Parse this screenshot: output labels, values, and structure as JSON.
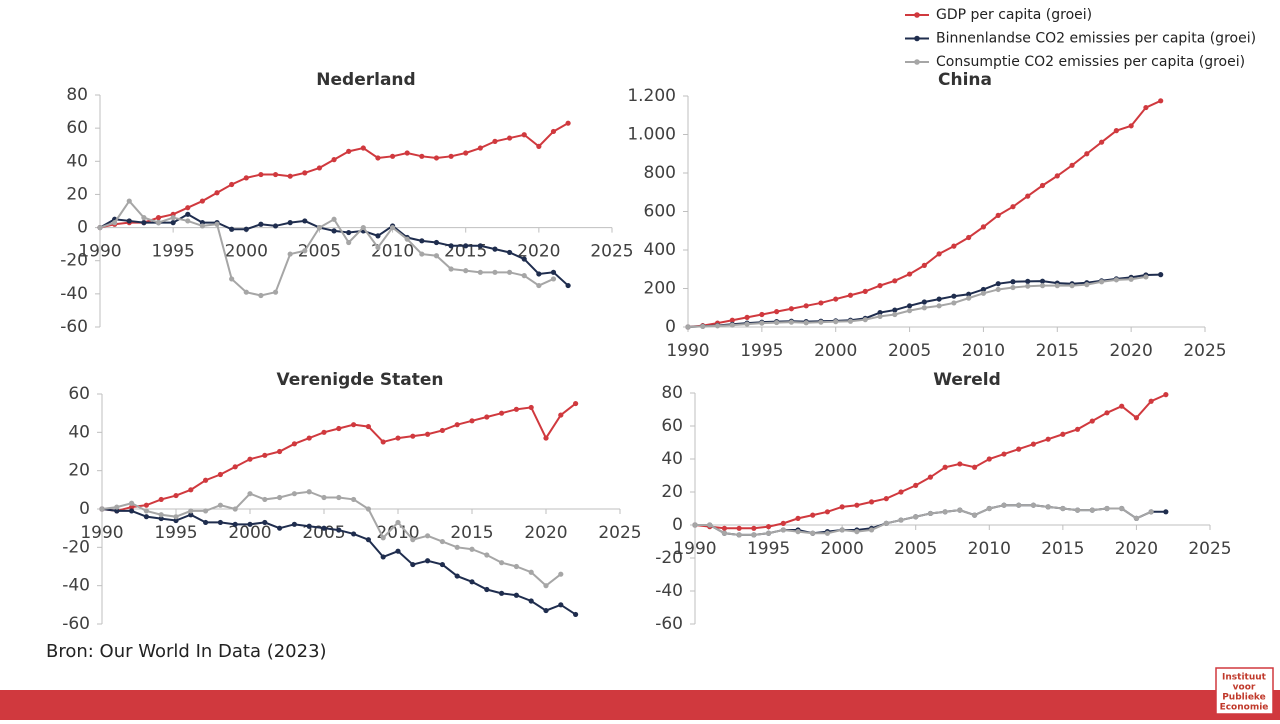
{
  "source": "Bron: Our World In Data (2023)",
  "logo": [
    "Instituut",
    "voor",
    "Publieke",
    "Economie"
  ],
  "chart_data": [
    {
      "type": "line",
      "title": "Nederland",
      "x": [
        1990,
        1991,
        1992,
        1993,
        1994,
        1995,
        1996,
        1997,
        1998,
        1999,
        2000,
        2001,
        2002,
        2003,
        2004,
        2005,
        2006,
        2007,
        2008,
        2009,
        2010,
        2011,
        2012,
        2013,
        2014,
        2015,
        2016,
        2017,
        2018,
        2019,
        2020,
        2021,
        2022
      ],
      "xlim": [
        1990,
        2025
      ],
      "xticks": [
        1990,
        1995,
        2000,
        2005,
        2010,
        2015,
        2020,
        2025
      ],
      "ylim": [
        -60,
        80
      ],
      "yticks": [
        -60,
        -40,
        -20,
        0,
        20,
        40,
        60,
        80
      ],
      "series": [
        {
          "name": "GDP per capita (groei)",
          "color": "#d0393e",
          "values": [
            0,
            2,
            3,
            3,
            6,
            8,
            12,
            16,
            21,
            26,
            30,
            32,
            32,
            31,
            33,
            36,
            41,
            46,
            48,
            42,
            43,
            45,
            43,
            42,
            43,
            45,
            48,
            52,
            54,
            56,
            49,
            58,
            63
          ]
        },
        {
          "name": "Binnenlandse CO2 emissies per capita (groei)",
          "color": "#1f2d4e",
          "values": [
            0,
            5,
            4,
            3,
            3,
            3,
            8,
            3,
            3,
            -1,
            -1,
            2,
            1,
            3,
            4,
            0,
            -2,
            -3,
            -2,
            -5,
            1,
            -6,
            -8,
            -9,
            -11,
            -11,
            -11,
            -13,
            -15,
            -19,
            -28,
            -27,
            -35
          ]
        },
        {
          "name": "Consumptie CO2 emissies per capita (groei)",
          "color": "#a6a6a6",
          "values": [
            0,
            3,
            16,
            6,
            3,
            6,
            4,
            1,
            2,
            -31,
            -39,
            -41,
            -39,
            -16,
            -14,
            0,
            5,
            -9,
            0,
            -12,
            0,
            -7,
            -16,
            -17,
            -25,
            -26,
            -27,
            -27,
            -27,
            -29,
            -35,
            -31,
            null
          ]
        }
      ]
    },
    {
      "type": "line",
      "title": "China",
      "x": [
        1990,
        1991,
        1992,
        1993,
        1994,
        1995,
        1996,
        1997,
        1998,
        1999,
        2000,
        2001,
        2002,
        2003,
        2004,
        2005,
        2006,
        2007,
        2008,
        2009,
        2010,
        2011,
        2012,
        2013,
        2014,
        2015,
        2016,
        2017,
        2018,
        2019,
        2020,
        2021,
        2022
      ],
      "xlim": [
        1990,
        2025
      ],
      "xticks": [
        1990,
        1995,
        2000,
        2005,
        2010,
        2015,
        2020,
        2025
      ],
      "ylim": [
        0,
        1200
      ],
      "yticks": [
        0,
        200,
        400,
        600,
        800,
        {
          "value": 1000,
          "label": "1.000"
        },
        {
          "value": 1200,
          "label": "1.200"
        }
      ],
      "series": [
        {
          "values": [
            0,
            7,
            20,
            35,
            50,
            65,
            80,
            95,
            110,
            125,
            145,
            165,
            185,
            215,
            240,
            275,
            320,
            380,
            420,
            465,
            520,
            580,
            625,
            680,
            735,
            785,
            840,
            900,
            960,
            1020,
            1045,
            1140,
            1175
          ]
        },
        {
          "values": [
            0,
            4,
            8,
            14,
            20,
            25,
            28,
            30,
            28,
            30,
            32,
            35,
            45,
            75,
            88,
            110,
            130,
            145,
            160,
            170,
            195,
            225,
            235,
            237,
            238,
            228,
            225,
            230,
            240,
            250,
            258,
            270,
            272
          ]
        },
        {
          "values": [
            0,
            3,
            6,
            10,
            15,
            20,
            23,
            25,
            22,
            25,
            28,
            30,
            38,
            55,
            65,
            85,
            100,
            110,
            125,
            150,
            175,
            195,
            205,
            212,
            215,
            215,
            215,
            220,
            235,
            245,
            248,
            260,
            null
          ]
        }
      ]
    },
    {
      "type": "line",
      "title": "Verenigde Staten",
      "x": [
        1990,
        1991,
        1992,
        1993,
        1994,
        1995,
        1996,
        1997,
        1998,
        1999,
        2000,
        2001,
        2002,
        2003,
        2004,
        2005,
        2006,
        2007,
        2008,
        2009,
        2010,
        2011,
        2012,
        2013,
        2014,
        2015,
        2016,
        2017,
        2018,
        2019,
        2020,
        2021,
        2022
      ],
      "xlim": [
        1990,
        2025
      ],
      "xticks": [
        1990,
        1995,
        2000,
        2005,
        2010,
        2015,
        2020,
        2025
      ],
      "ylim": [
        -60,
        60
      ],
      "yticks": [
        -60,
        -40,
        -20,
        0,
        20,
        40,
        60
      ],
      "series": [
        {
          "values": [
            0,
            -1,
            1,
            2,
            5,
            7,
            10,
            15,
            18,
            22,
            26,
            28,
            30,
            34,
            37,
            40,
            42,
            44,
            43,
            35,
            37,
            38,
            39,
            41,
            44,
            46,
            48,
            50,
            52,
            53,
            37,
            49,
            55
          ]
        },
        {
          "values": [
            0,
            -1,
            -1,
            -4,
            -5,
            -6,
            -3,
            -7,
            -7,
            -8,
            -8,
            -7,
            -10,
            -8,
            -9,
            -10,
            -11,
            -13,
            -16,
            -25,
            -22,
            -29,
            -27,
            -29,
            -35,
            -38,
            -42,
            -44,
            -45,
            -48,
            -53,
            -50,
            -55
          ]
        },
        {
          "values": [
            0,
            1,
            3,
            -1,
            -3,
            -4,
            -1,
            -1,
            2,
            0,
            8,
            5,
            6,
            8,
            9,
            6,
            6,
            5,
            0,
            -15,
            -7,
            -16,
            -14,
            -17,
            -20,
            -21,
            -24,
            -28,
            -30,
            -33,
            -40,
            -34,
            null
          ]
        }
      ]
    },
    {
      "type": "line",
      "title": "Wereld",
      "x": [
        1990,
        1991,
        1992,
        1993,
        1994,
        1995,
        1996,
        1997,
        1998,
        1999,
        2000,
        2001,
        2002,
        2003,
        2004,
        2005,
        2006,
        2007,
        2008,
        2009,
        2010,
        2011,
        2012,
        2013,
        2014,
        2015,
        2016,
        2017,
        2018,
        2019,
        2020,
        2021,
        2022
      ],
      "xlim": [
        1990,
        2025
      ],
      "xticks": [
        1990,
        1995,
        2000,
        2005,
        2010,
        2015,
        2020,
        2025
      ],
      "ylim": [
        -60,
        80
      ],
      "yticks": [
        -60,
        -40,
        -20,
        0,
        20,
        40,
        60,
        80
      ],
      "series": [
        {
          "values": [
            0,
            -1,
            -2,
            -2,
            -2,
            -1,
            1,
            4,
            6,
            8,
            11,
            12,
            14,
            16,
            20,
            24,
            29,
            35,
            37,
            35,
            40,
            43,
            46,
            49,
            52,
            55,
            58,
            63,
            68,
            72,
            65,
            75,
            79
          ]
        },
        {
          "values": [
            0,
            0,
            -5,
            -6,
            -6,
            -5,
            -3,
            -3,
            -5,
            -4,
            -3,
            -3,
            -2,
            1,
            3,
            5,
            7,
            8,
            9,
            6,
            10,
            12,
            12,
            12,
            11,
            10,
            9,
            9,
            10,
            10,
            4,
            8,
            8
          ]
        },
        {
          "values": [
            0,
            0,
            -5,
            -6,
            -6,
            -5,
            -3,
            -4,
            -5,
            -5,
            -3,
            -4,
            -3,
            1,
            3,
            5,
            7,
            8,
            9,
            6,
            10,
            12,
            12,
            12,
            11,
            10,
            9,
            9,
            10,
            10,
            4,
            8,
            null
          ]
        }
      ]
    }
  ]
}
